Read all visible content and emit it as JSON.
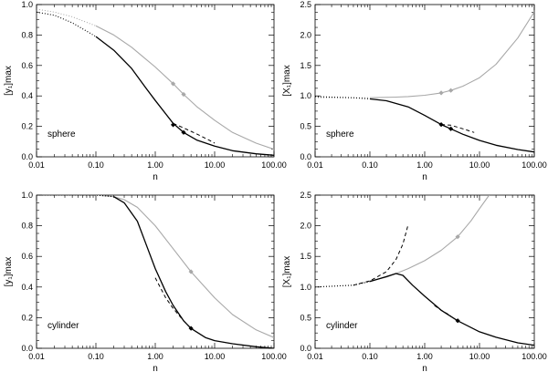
{
  "chart_data": [
    {
      "type": "line",
      "panel": "top-left",
      "xscale": "log",
      "xlim": [
        0.01,
        100
      ],
      "ylim": [
        0.0,
        1.0
      ],
      "xlabel": "n",
      "ylabel": "[y₁]max",
      "annotation": "sphere",
      "x_ticks": [
        "0.01",
        "0.10",
        "1.00",
        "10.00",
        "100.00"
      ],
      "y_ticks": [
        "0.0",
        "0.2",
        "0.4",
        "0.6",
        "0.8",
        "1.0"
      ],
      "series": [
        {
          "style": "gray-dotted",
          "x": [
            0.01,
            0.02,
            0.04,
            0.1
          ],
          "y": [
            0.97,
            0.95,
            0.92,
            0.86
          ]
        },
        {
          "style": "gray-solid",
          "x": [
            0.1,
            0.2,
            0.4,
            0.7,
            1.0,
            2.0,
            3.0,
            5.0,
            10.0,
            20.0,
            50.0,
            100.0
          ],
          "y": [
            0.86,
            0.8,
            0.72,
            0.64,
            0.59,
            0.48,
            0.41,
            0.33,
            0.24,
            0.16,
            0.09,
            0.05
          ]
        },
        {
          "style": "black-dotted",
          "x": [
            0.01,
            0.02,
            0.04,
            0.1
          ],
          "y": [
            0.95,
            0.93,
            0.88,
            0.79
          ]
        },
        {
          "style": "black-solid",
          "x": [
            0.1,
            0.2,
            0.4,
            0.7,
            1.0,
            2.0,
            3.0,
            5.0,
            10.0,
            20.0,
            50.0,
            100.0
          ],
          "y": [
            0.79,
            0.7,
            0.58,
            0.45,
            0.37,
            0.22,
            0.16,
            0.11,
            0.07,
            0.04,
            0.02,
            0.01
          ]
        },
        {
          "style": "black-dashed",
          "x": [
            2.0,
            3.0,
            5.0,
            8.0,
            10.0
          ],
          "y": [
            0.22,
            0.19,
            0.15,
            0.11,
            0.09
          ]
        }
      ],
      "markers": [
        {
          "color": "gray",
          "x": 2.0,
          "y": 0.48
        },
        {
          "color": "gray",
          "x": 3.0,
          "y": 0.41
        },
        {
          "color": "black",
          "x": 2.0,
          "y": 0.21
        },
        {
          "color": "black",
          "x": 3.0,
          "y": 0.16
        }
      ]
    },
    {
      "type": "line",
      "panel": "top-right",
      "xscale": "log",
      "xlim": [
        0.01,
        100
      ],
      "ylim": [
        0.0,
        2.5
      ],
      "xlabel": "n",
      "ylabel": "[X₁]max",
      "annotation": "sphere",
      "x_ticks": [
        "0.01",
        "0.10",
        "1.00",
        "10.00",
        "100.00"
      ],
      "y_ticks": [
        "0.0",
        "0.5",
        "1.0",
        "1.5",
        "2.0",
        "2.5"
      ],
      "series": [
        {
          "style": "gray-dotted",
          "x": [
            0.01,
            0.02,
            0.05,
            0.1
          ],
          "y": [
            0.97,
            0.97,
            0.97,
            0.97
          ]
        },
        {
          "style": "gray-solid",
          "x": [
            0.1,
            0.3,
            0.5,
            1.0,
            2.0,
            3.0,
            5.0,
            10.0,
            20.0,
            50.0,
            100.0
          ],
          "y": [
            0.97,
            0.98,
            0.99,
            1.01,
            1.05,
            1.09,
            1.16,
            1.3,
            1.52,
            1.95,
            2.38
          ]
        },
        {
          "style": "black-dotted",
          "x": [
            0.01,
            0.02,
            0.05,
            0.1
          ],
          "y": [
            0.99,
            0.98,
            0.97,
            0.95
          ]
        },
        {
          "style": "black-solid",
          "x": [
            0.1,
            0.2,
            0.5,
            1.0,
            2.0,
            3.0,
            5.0,
            10.0,
            20.0,
            50.0,
            100.0
          ],
          "y": [
            0.95,
            0.92,
            0.82,
            0.68,
            0.53,
            0.46,
            0.37,
            0.27,
            0.19,
            0.12,
            0.08
          ]
        },
        {
          "style": "black-dashed",
          "x": [
            2.0,
            3.0,
            5.0,
            8.0
          ],
          "y": [
            0.53,
            0.52,
            0.46,
            0.4
          ]
        }
      ],
      "markers": [
        {
          "color": "gray",
          "x": 2.0,
          "y": 1.05
        },
        {
          "color": "gray",
          "x": 3.0,
          "y": 1.09
        },
        {
          "color": "black",
          "x": 2.0,
          "y": 0.53
        },
        {
          "color": "black",
          "x": 3.0,
          "y": 0.46
        }
      ]
    },
    {
      "type": "line",
      "panel": "bottom-left",
      "xscale": "log",
      "xlim": [
        0.01,
        100
      ],
      "ylim": [
        0.0,
        1.0
      ],
      "xlabel": "n",
      "ylabel": "[y₁]max",
      "annotation": "cylinder",
      "x_ticks": [
        "0.01",
        "0.10",
        "1.00",
        "10.00",
        "100.00"
      ],
      "y_ticks": [
        "0.0",
        "0.2",
        "0.4",
        "0.6",
        "0.8",
        "1.0"
      ],
      "series": [
        {
          "style": "gray-dotted",
          "x": [
            0.01,
            0.03,
            0.1
          ],
          "y": [
            1.0,
            1.0,
            1.0
          ]
        },
        {
          "style": "gray-solid",
          "x": [
            0.1,
            0.2,
            0.3,
            0.5,
            1.0,
            2.0,
            4.0,
            10.0,
            20.0,
            50.0,
            100.0
          ],
          "y": [
            1.0,
            0.99,
            0.97,
            0.92,
            0.8,
            0.65,
            0.5,
            0.33,
            0.22,
            0.12,
            0.07
          ]
        },
        {
          "style": "black-dotted",
          "x": [
            0.01,
            0.05,
            0.1,
            0.2
          ],
          "y": [
            1.0,
            1.0,
            1.0,
            0.99
          ]
        },
        {
          "style": "black-solid",
          "x": [
            0.2,
            0.3,
            0.5,
            0.7,
            1.0,
            1.5,
            2.0,
            3.0,
            4.0,
            7.0,
            10.0,
            20.0,
            50.0,
            100.0
          ],
          "y": [
            0.99,
            0.95,
            0.83,
            0.68,
            0.52,
            0.37,
            0.28,
            0.18,
            0.13,
            0.07,
            0.05,
            0.03,
            0.01,
            0.0
          ]
        },
        {
          "style": "black-dashed",
          "x": [
            1.0,
            1.5,
            2.0,
            3.0,
            4.0
          ],
          "y": [
            0.46,
            0.33,
            0.26,
            0.18,
            0.13
          ]
        }
      ],
      "markers": [
        {
          "color": "gray",
          "x": 4.0,
          "y": 0.5
        },
        {
          "color": "black",
          "x": 4.0,
          "y": 0.13
        }
      ]
    },
    {
      "type": "line",
      "panel": "bottom-right",
      "xscale": "log",
      "xlim": [
        0.01,
        100
      ],
      "ylim": [
        0.0,
        2.5
      ],
      "xlabel": "n",
      "ylabel": "[X₁]max",
      "annotation": "cylinder",
      "x_ticks": [
        "0.01",
        "0.10",
        "1.00",
        "10.00",
        "100.00"
      ],
      "y_ticks": [
        "0.0",
        "0.5",
        "1.0",
        "1.5",
        "2.0",
        "2.5"
      ],
      "series": [
        {
          "style": "gray-dotted",
          "x": [
            0.01,
            0.05,
            0.1
          ],
          "y": [
            1.0,
            1.03,
            1.1
          ]
        },
        {
          "style": "gray-solid",
          "x": [
            0.1,
            0.2,
            0.3,
            0.5,
            1.0,
            2.0,
            4.0,
            7.0,
            10.0,
            15.0
          ],
          "y": [
            1.1,
            1.16,
            1.22,
            1.3,
            1.43,
            1.6,
            1.82,
            2.08,
            2.28,
            2.5
          ]
        },
        {
          "style": "black-dotted",
          "x": [
            0.01,
            0.05,
            0.1
          ],
          "y": [
            1.0,
            1.03,
            1.09
          ]
        },
        {
          "style": "black-solid",
          "x": [
            0.1,
            0.2,
            0.3,
            0.4,
            0.6,
            1.0,
            2.0,
            4.0,
            10.0,
            20.0,
            50.0,
            100.0
          ],
          "y": [
            1.09,
            1.17,
            1.22,
            1.19,
            1.03,
            0.85,
            0.62,
            0.45,
            0.27,
            0.18,
            0.09,
            0.05
          ]
        },
        {
          "style": "black-dashed",
          "x": [
            0.05,
            0.1,
            0.2,
            0.3,
            0.4,
            0.5
          ],
          "y": [
            1.03,
            1.1,
            1.25,
            1.45,
            1.7,
            2.02
          ]
        },
        {
          "style": "black-dashed",
          "x": [
            1.5,
            2.0,
            3.0
          ],
          "y": [
            0.7,
            0.62,
            0.53
          ]
        }
      ],
      "markers": [
        {
          "color": "gray",
          "x": 4.0,
          "y": 1.82
        },
        {
          "color": "black",
          "x": 4.0,
          "y": 0.45
        }
      ]
    }
  ]
}
